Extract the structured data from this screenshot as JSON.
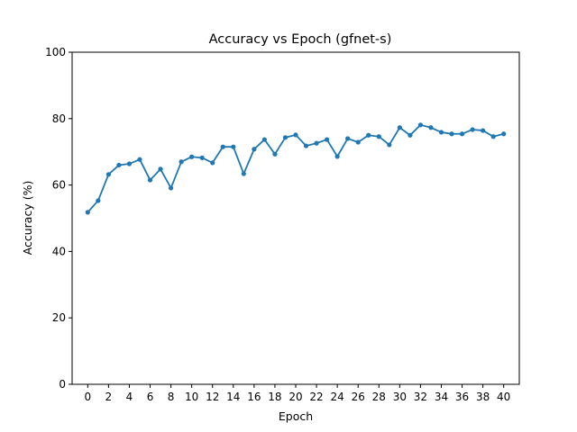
{
  "chart_data": {
    "type": "line",
    "title": "Accuracy vs Epoch  (gfnet-s)",
    "xlabel": "Epoch",
    "ylabel": "Accuracy (%)",
    "xlim": [
      -1.5,
      41.5
    ],
    "ylim": [
      0,
      100
    ],
    "xticks": [
      0,
      2,
      4,
      6,
      8,
      10,
      12,
      14,
      16,
      18,
      20,
      22,
      24,
      26,
      28,
      30,
      32,
      34,
      36,
      38,
      40
    ],
    "yticks": [
      0,
      20,
      40,
      60,
      80,
      100
    ],
    "grid": false,
    "series": [
      {
        "color": "#1f77b4",
        "marker": "circle",
        "x": [
          0,
          1,
          2,
          3,
          4,
          5,
          6,
          7,
          8,
          9,
          10,
          11,
          12,
          13,
          14,
          15,
          16,
          17,
          18,
          19,
          20,
          21,
          22,
          23,
          24,
          25,
          26,
          27,
          28,
          29,
          30,
          31,
          32,
          33,
          34,
          35,
          36,
          37,
          38,
          39,
          40
        ],
        "y": [
          51.8,
          55.3,
          63.2,
          66.0,
          66.4,
          67.7,
          61.5,
          64.8,
          59.1,
          67.0,
          68.5,
          68.2,
          66.7,
          71.5,
          71.5,
          63.4,
          70.8,
          73.7,
          69.3,
          74.3,
          75.1,
          71.8,
          72.6,
          73.7,
          68.6,
          74.0,
          72.9,
          75.0,
          74.6,
          72.1,
          77.3,
          75.0,
          78.1,
          77.3,
          75.9,
          75.4,
          75.4,
          76.7,
          76.4,
          74.6,
          75.4
        ]
      }
    ]
  }
}
